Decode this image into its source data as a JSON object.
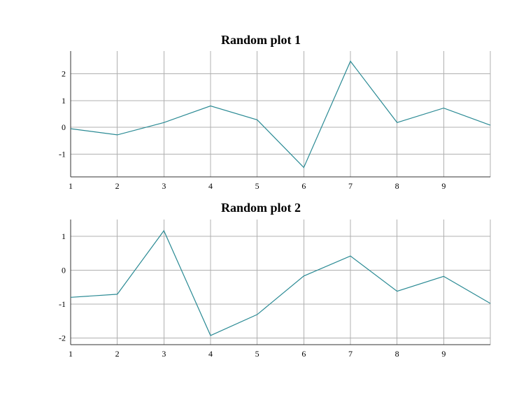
{
  "chart_data": [
    {
      "type": "line",
      "title": "Random plot 1",
      "xlabel": "",
      "ylabel": "",
      "x": [
        1,
        2,
        3,
        4,
        5,
        6,
        7,
        8,
        9,
        10
      ],
      "x_tick_labels": [
        "1",
        "2",
        "3",
        "4",
        "5",
        "6",
        "7",
        "8",
        "9"
      ],
      "x_ticks": [
        1,
        2,
        3,
        4,
        5,
        6,
        7,
        8,
        9
      ],
      "y_tick_labels": [
        "-1",
        "0",
        "1",
        "2"
      ],
      "y_ticks": [
        -1,
        0,
        1,
        2
      ],
      "xlim": [
        1,
        10
      ],
      "ylim": [
        -1.85,
        2.85
      ],
      "grid": true,
      "series": [
        {
          "values": [
            -0.05,
            -0.28,
            0.18,
            0.8,
            0.28,
            -1.5,
            2.47,
            0.18,
            0.72,
            0.08
          ],
          "color": "#2a8a94"
        }
      ]
    },
    {
      "type": "line",
      "title": "Random plot 2",
      "xlabel": "",
      "ylabel": "",
      "x": [
        1,
        2,
        3,
        4,
        5,
        6,
        7,
        8,
        9,
        10
      ],
      "x_tick_labels": [
        "1",
        "2",
        "3",
        "4",
        "5",
        "6",
        "7",
        "8",
        "9"
      ],
      "x_ticks": [
        1,
        2,
        3,
        4,
        5,
        6,
        7,
        8,
        9
      ],
      "y_tick_labels": [
        "-2",
        "-1",
        "0",
        "1"
      ],
      "y_ticks": [
        -2,
        -1,
        0,
        1
      ],
      "xlim": [
        1,
        10
      ],
      "ylim": [
        -2.2,
        1.5
      ],
      "grid": true,
      "series": [
        {
          "values": [
            -0.8,
            -0.71,
            1.17,
            -1.93,
            -1.31,
            -0.17,
            0.42,
            -0.62,
            -0.18,
            -0.98
          ],
          "color": "#2a8a94"
        }
      ]
    }
  ]
}
